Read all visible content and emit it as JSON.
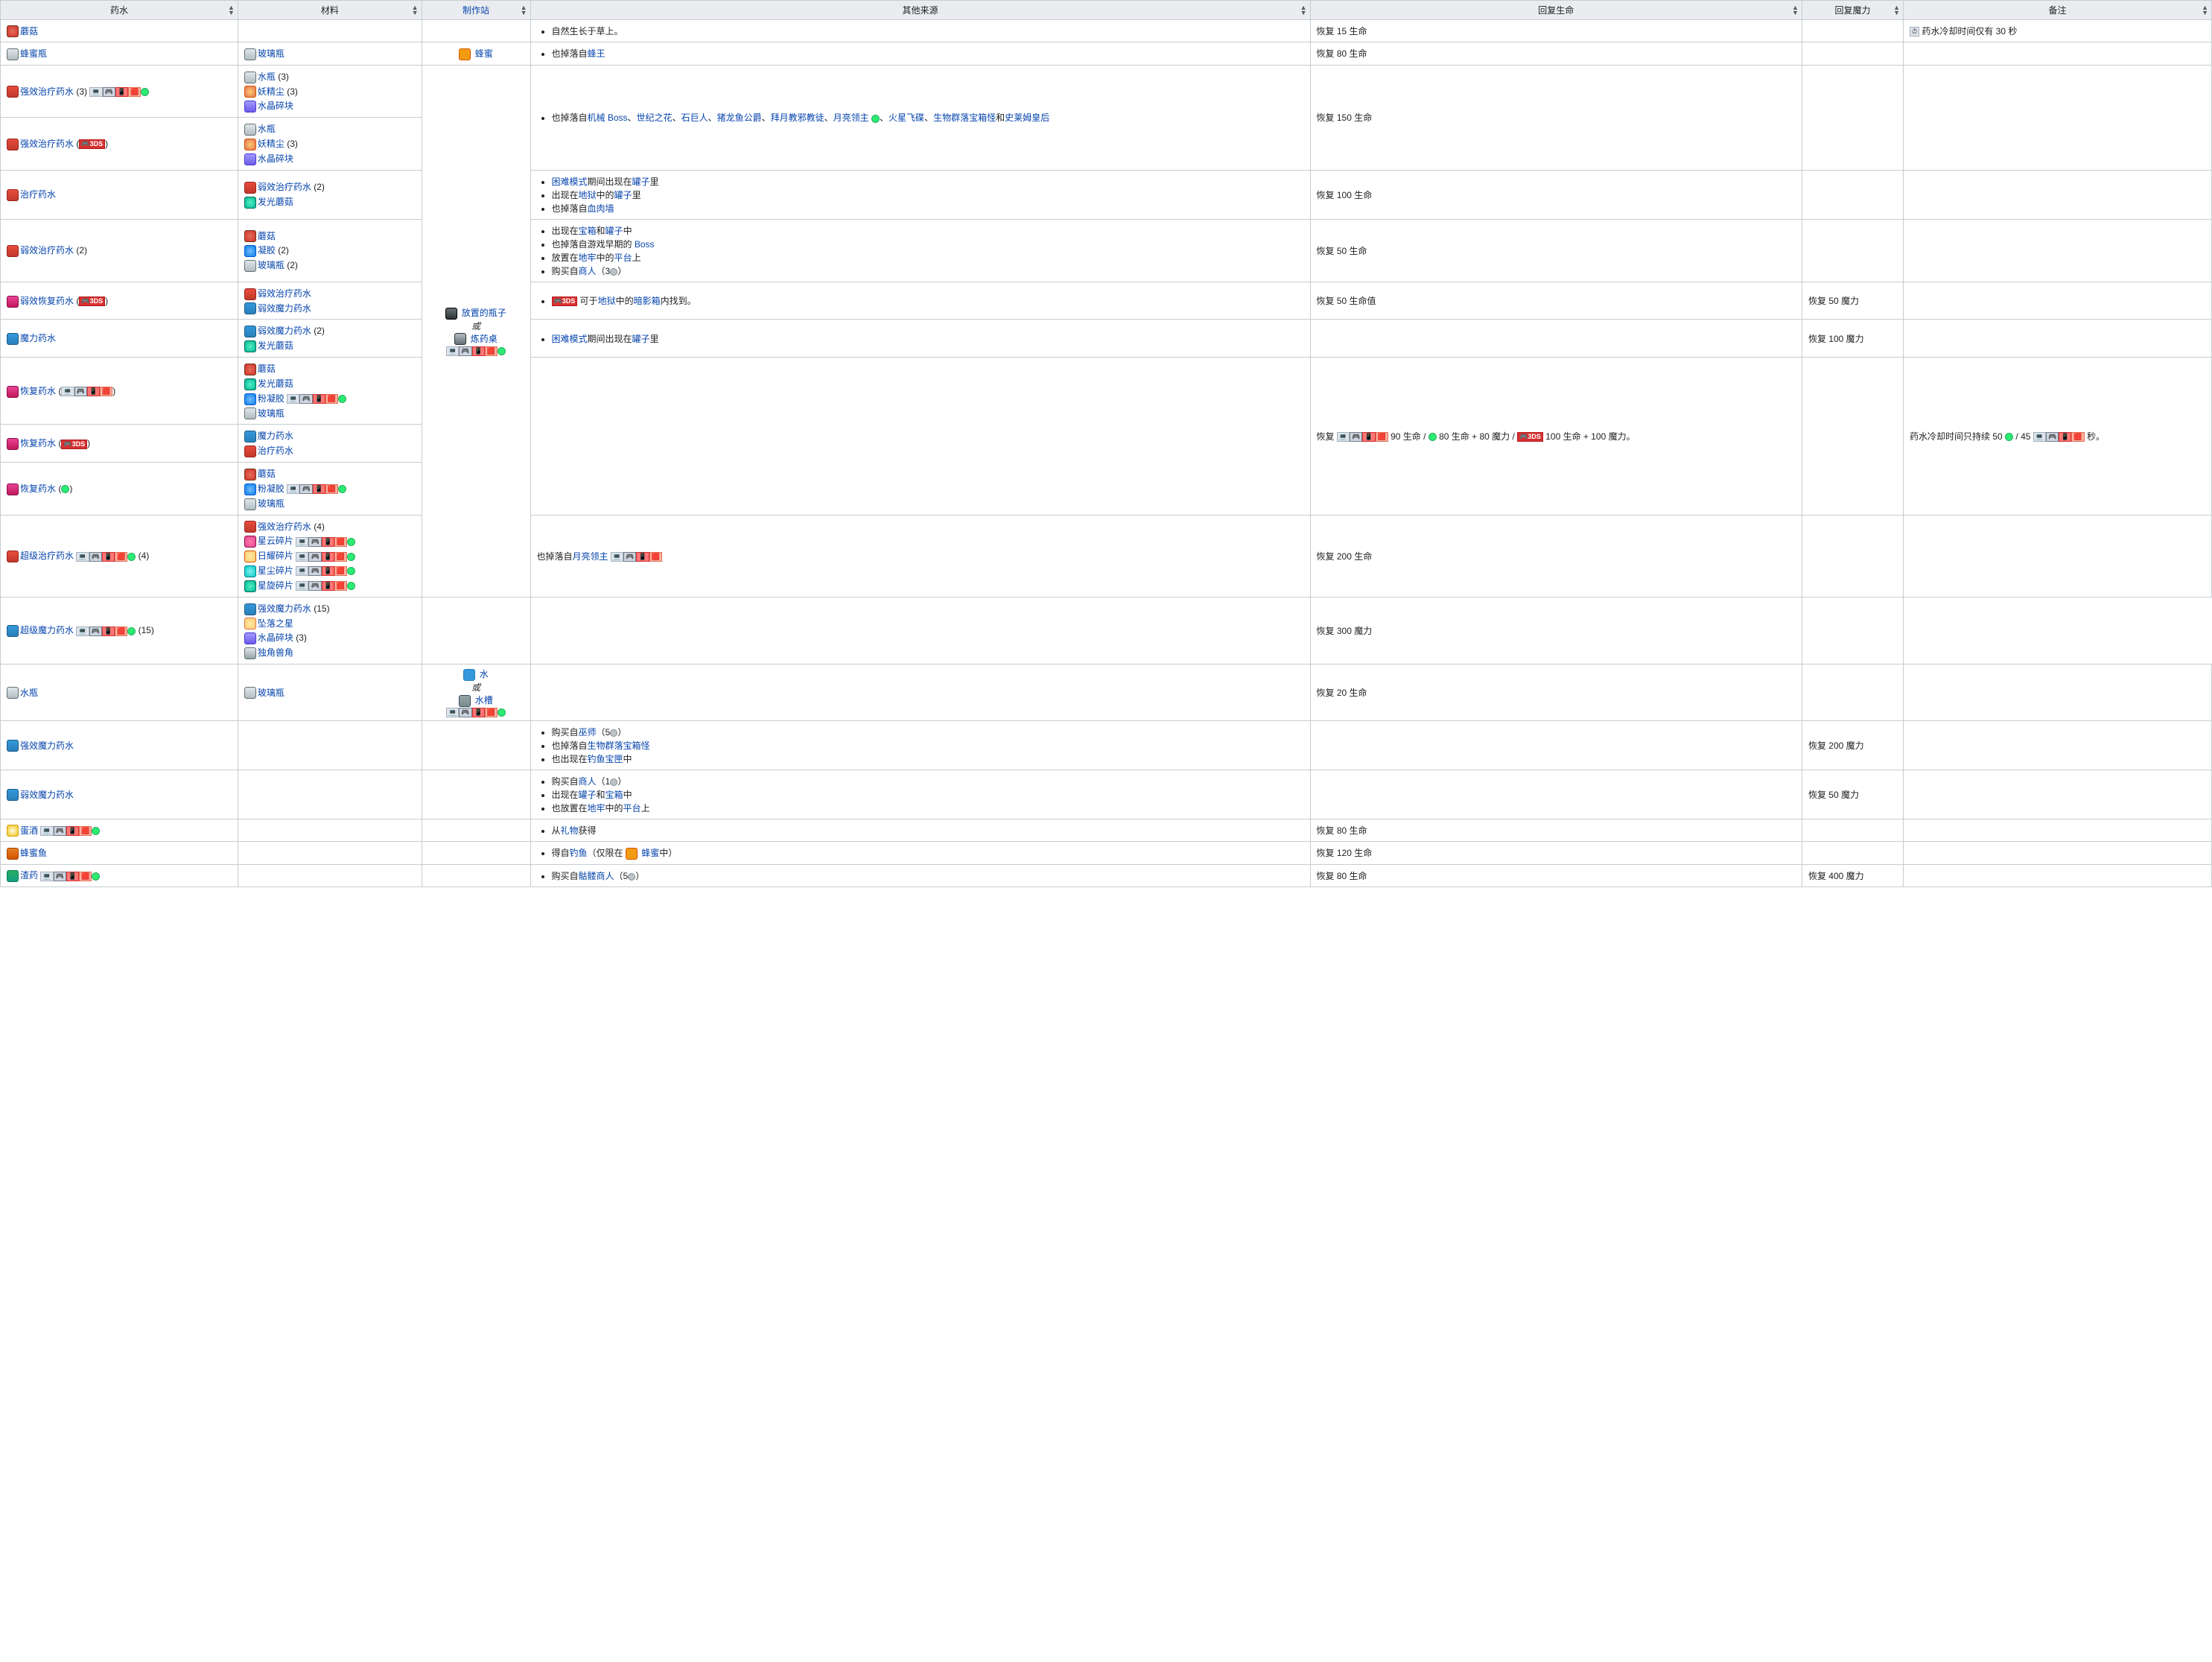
{
  "headers": {
    "potion": "药水",
    "materials": "材料",
    "craftStation": "制作站",
    "otherSources": "其他来源",
    "restoreLife": "回复生命",
    "restoreMana": "回复魔力",
    "notes": "备注"
  },
  "stations": {
    "honey": "蜂蜜",
    "placedBottle": "放置的瓶子",
    "or": "或",
    "alchemyTable": "炼药桌",
    "water": "水",
    "sink": "水槽"
  },
  "rows": [
    {
      "potion": {
        "icon": "icon-mushroom",
        "name": "蘑菇"
      },
      "materials": [],
      "sources": [
        {
          "type": "li",
          "parts": [
            {
              "t": "自然生长于草上。"
            }
          ]
        }
      ],
      "life": "恢复 15 生命",
      "mana": "",
      "notes": "药水冷却时间仅有 30 秒",
      "notesIcon": true,
      "stationGroup": null
    },
    {
      "potion": {
        "icon": "icon-bottle",
        "name": "蜂蜜瓶"
      },
      "materials": [
        {
          "icon": "icon-bottle",
          "name": "玻璃瓶"
        }
      ],
      "sources": [
        {
          "type": "li",
          "parts": [
            {
              "t": "也掉落自"
            },
            {
              "link": "蜂王"
            }
          ]
        }
      ],
      "life": "恢复 80 生命",
      "mana": "",
      "notes": "",
      "stationGroup": "honey"
    },
    {
      "potion": {
        "icon": "icon-potion-red",
        "name": "强效治疗药水",
        "suffix": " (3) ",
        "platforms": [
          "pc",
          "console",
          "mobile",
          "switch",
          "old"
        ]
      },
      "materials": [
        {
          "icon": "icon-bottle",
          "name": "水瓶",
          "qty": "(3)"
        },
        {
          "icon": "icon-dust",
          "name": "妖精尘",
          "qty": "(3)"
        },
        {
          "icon": "icon-crystal",
          "name": "水晶碎块"
        }
      ],
      "sourcesRowspan": 2,
      "sources": [
        {
          "type": "li",
          "parts": [
            {
              "t": "也掉落自"
            },
            {
              "link": "机械 Boss"
            },
            {
              "t": "、"
            },
            {
              "link": "世纪之花"
            },
            {
              "t": "、"
            },
            {
              "link": "石巨人"
            },
            {
              "t": "、"
            },
            {
              "link": "猪龙鱼公爵"
            },
            {
              "t": "、"
            },
            {
              "link": "拜月教邪教徒"
            },
            {
              "t": "、"
            },
            {
              "link": "月亮领主"
            },
            {
              "t": " "
            },
            {
              "platOld": true
            },
            {
              "t": "、"
            },
            {
              "link": "火星飞碟"
            },
            {
              "t": "、"
            },
            {
              "link": "生物群落宝箱怪"
            },
            {
              "t": "和"
            },
            {
              "link": "史莱姆皇后"
            }
          ]
        }
      ],
      "life": "恢复 150 生命",
      "lifeRowspan": 2,
      "mana": "",
      "manaRowspan": 2,
      "notes": "",
      "notesRowspan": 2,
      "stationGroup": "bottle-start",
      "stationRowspan": 10
    },
    {
      "potion": {
        "icon": "icon-potion-red",
        "name": "强效治疗药水",
        "suffix": " (",
        "platforms3ds": true,
        "suffix2": ")"
      },
      "materials": [
        {
          "icon": "icon-bottle",
          "name": "水瓶"
        },
        {
          "icon": "icon-dust",
          "name": "妖精尘",
          "qty": "(3)"
        },
        {
          "icon": "icon-crystal",
          "name": "水晶碎块"
        }
      ],
      "stationGroup": "bottle"
    },
    {
      "potion": {
        "icon": "icon-potion-red",
        "name": "治疗药水"
      },
      "materials": [
        {
          "icon": "icon-potion-red",
          "name": "弱效治疗药水",
          "qty": "(2)"
        },
        {
          "icon": "icon-glow-mushroom",
          "name": "发光蘑菇"
        }
      ],
      "sources": [
        {
          "type": "li",
          "parts": [
            {
              "link": "困难模式"
            },
            {
              "t": "期间出现在"
            },
            {
              "link": "罐子"
            },
            {
              "t": "里"
            }
          ]
        },
        {
          "type": "li",
          "parts": [
            {
              "t": "出现在"
            },
            {
              "link": "地狱"
            },
            {
              "t": "中的"
            },
            {
              "link": "罐子"
            },
            {
              "t": "里"
            }
          ]
        },
        {
          "type": "li",
          "parts": [
            {
              "t": "也掉落自"
            },
            {
              "link": "血肉墙"
            }
          ]
        }
      ],
      "life": "恢复 100 生命",
      "mana": "",
      "notes": "",
      "stationGroup": "bottle"
    },
    {
      "potion": {
        "icon": "icon-potion-red",
        "name": "弱效治疗药水",
        "suffix": " (2)"
      },
      "materials": [
        {
          "icon": "icon-mushroom",
          "name": "蘑菇"
        },
        {
          "icon": "icon-gel",
          "name": "凝胶",
          "qty": "(2)"
        },
        {
          "icon": "icon-bottle",
          "name": "玻璃瓶",
          "qty": "(2)"
        }
      ],
      "sources": [
        {
          "type": "li",
          "parts": [
            {
              "t": "出现在"
            },
            {
              "link": "宝箱"
            },
            {
              "t": "和"
            },
            {
              "link": "罐子"
            },
            {
              "t": "中"
            }
          ]
        },
        {
          "type": "li",
          "parts": [
            {
              "t": "也掉落自游戏早期的 "
            },
            {
              "link": "Boss"
            }
          ]
        },
        {
          "type": "li",
          "parts": [
            {
              "t": "放置在"
            },
            {
              "link": "地牢"
            },
            {
              "t": "中的"
            },
            {
              "link": "平台"
            },
            {
              "t": "上"
            }
          ]
        },
        {
          "type": "li",
          "parts": [
            {
              "t": "购买自"
            },
            {
              "link": "商人"
            },
            {
              "t": "（3"
            },
            {
              "coin": "silver"
            },
            {
              "t": "）"
            }
          ]
        }
      ],
      "life": "恢复 50 生命",
      "mana": "",
      "notes": "",
      "stationGroup": "bottle"
    },
    {
      "potion": {
        "icon": "icon-potion-pink",
        "name": "弱效恢复药水",
        "suffix": " (",
        "platforms3ds": true,
        "suffix2": ")"
      },
      "materials": [
        {
          "icon": "icon-potion-red",
          "name": "弱效治疗药水"
        },
        {
          "icon": "icon-potion-blue",
          "name": "弱效魔力药水"
        }
      ],
      "sources": [
        {
          "type": "li",
          "parts": [
            {
              "plat3ds": true
            },
            {
              "t": " 可于"
            },
            {
              "link": "地狱"
            },
            {
              "t": "中的"
            },
            {
              "link": "暗影箱"
            },
            {
              "t": "内找到。"
            }
          ]
        }
      ],
      "life": "恢复 50 生命值",
      "mana": "恢复 50 魔力",
      "notes": "",
      "stationGroup": "bottle"
    },
    {
      "potion": {
        "icon": "icon-potion-blue",
        "name": "魔力药水"
      },
      "materials": [
        {
          "icon": "icon-potion-blue",
          "name": "弱效魔力药水",
          "qty": "(2)"
        },
        {
          "icon": "icon-glow-mushroom",
          "name": "发光蘑菇"
        }
      ],
      "sources": [
        {
          "type": "li",
          "parts": [
            {
              "link": "困难模式"
            },
            {
              "t": "期间出现在"
            },
            {
              "link": "罐子"
            },
            {
              "t": "里"
            }
          ]
        }
      ],
      "life": "",
      "mana": "恢复 100 魔力",
      "notes": "",
      "stationGroup": "bottle"
    },
    {
      "potion": {
        "icon": "icon-potion-pink",
        "name": "恢复药水",
        "suffix": " (",
        "platforms": [
          "pc",
          "console",
          "mobile",
          "switch"
        ],
        "suffix2": ")"
      },
      "materials": [
        {
          "icon": "icon-mushroom",
          "name": "蘑菇"
        },
        {
          "icon": "icon-glow-mushroom",
          "name": "发光蘑菇"
        },
        {
          "icon": "icon-gel",
          "name": "粉凝胶",
          "platforms": [
            "pc",
            "console",
            "mobile",
            "switch",
            "old"
          ]
        },
        {
          "icon": "icon-bottle",
          "name": "玻璃瓶"
        }
      ],
      "sources": [],
      "sourcesRowspan": 3,
      "lifeRowspan": 3,
      "lifeComplex": true,
      "manaRowspan": 3,
      "mana": "",
      "notesRowspan": 3,
      "notesComplex": true,
      "stationGroup": "bottle"
    },
    {
      "potion": {
        "icon": "icon-potion-pink",
        "name": "恢复药水",
        "suffix": " (",
        "platforms3ds": true,
        "suffix2": ")"
      },
      "materials": [
        {
          "icon": "icon-potion-blue",
          "name": "魔力药水"
        },
        {
          "icon": "icon-potion-red",
          "name": "治疗药水"
        }
      ],
      "stationGroup": "bottle"
    },
    {
      "potion": {
        "icon": "icon-potion-pink",
        "name": "恢复药水",
        "suffix": " (",
        "platformsOld": true,
        "suffix2": ")"
      },
      "materials": [
        {
          "icon": "icon-mushroom",
          "name": "蘑菇"
        },
        {
          "icon": "icon-gel",
          "name": "粉凝胶",
          "platforms": [
            "pc",
            "console",
            "mobile",
            "switch",
            "old"
          ]
        },
        {
          "icon": "icon-bottle",
          "name": "玻璃瓶"
        }
      ],
      "stationGroup": "bottle"
    },
    {
      "potion": {
        "icon": "icon-potion-red",
        "name": "超级治疗药水",
        "suffix": " ",
        "platforms": [
          "pc",
          "console",
          "mobile",
          "switch",
          "old"
        ],
        "suffix2": " (4)"
      },
      "materials": [
        {
          "icon": "icon-potion-red",
          "name": "强效治疗药水",
          "qty": "(4)"
        },
        {
          "icon": "icon-frag-nebula",
          "name": "星云碎片",
          "platforms": [
            "pc",
            "console",
            "mobile",
            "switch",
            "old"
          ]
        },
        {
          "icon": "icon-frag-solar",
          "name": "日耀碎片",
          "platforms": [
            "pc",
            "console",
            "mobile",
            "switch",
            "old"
          ]
        },
        {
          "icon": "icon-frag-stardust",
          "name": "星尘碎片",
          "platforms": [
            "pc",
            "console",
            "mobile",
            "switch",
            "old"
          ]
        },
        {
          "icon": "icon-frag-vortex",
          "name": "星旋碎片",
          "platforms": [
            "pc",
            "console",
            "mobile",
            "switch",
            "old"
          ]
        }
      ],
      "sources": [
        {
          "type": "plain",
          "parts": [
            {
              "t": "也掉落自"
            },
            {
              "link": "月亮领主"
            },
            {
              "t": " "
            },
            {
              "platforms": [
                "pc",
                "console",
                "mobile",
                "switch"
              ]
            }
          ]
        }
      ],
      "life": "恢复 200 生命",
      "mana": "",
      "notes": "",
      "stationGroup": "bottle"
    },
    {
      "potion": {
        "icon": "icon-potion-blue",
        "name": "超级魔力药水",
        "suffix": " ",
        "platforms": [
          "pc",
          "console",
          "mobile",
          "switch",
          "old"
        ],
        "suffix2": " (15)"
      },
      "materials": [
        {
          "icon": "icon-potion-blue",
          "name": "强效魔力药水",
          "qty": "(15)"
        },
        {
          "icon": "icon-star",
          "name": "坠落之星"
        },
        {
          "icon": "icon-crystal",
          "name": "水晶碎块",
          "qty": "(3)"
        },
        {
          "icon": "icon-horn",
          "name": "独角兽角"
        }
      ],
      "sources": [],
      "life": "",
      "mana": "恢复 300 魔力",
      "notes": "",
      "stationGroup": "bottle"
    },
    {
      "potion": {
        "icon": "icon-bottle",
        "name": "水瓶"
      },
      "materials": [
        {
          "icon": "icon-bottle",
          "name": "玻璃瓶"
        }
      ],
      "sources": [],
      "life": "恢复 20 生命",
      "mana": "",
      "notes": "",
      "stationGroup": "water"
    },
    {
      "potion": {
        "icon": "icon-potion-blue",
        "name": "强效魔力药水"
      },
      "materials": [],
      "sources": [
        {
          "type": "li",
          "parts": [
            {
              "t": "购买自"
            },
            {
              "link": "巫师"
            },
            {
              "t": "（5"
            },
            {
              "coin": "silver"
            },
            {
              "t": "）"
            }
          ]
        },
        {
          "type": "li",
          "parts": [
            {
              "t": "也掉落自"
            },
            {
              "link": "生物群落宝箱怪"
            }
          ]
        },
        {
          "type": "li",
          "parts": [
            {
              "t": "也出现在"
            },
            {
              "link": "钓鱼宝匣"
            },
            {
              "t": "中"
            }
          ]
        }
      ],
      "life": "",
      "mana": "恢复 200 魔力",
      "notes": "",
      "stationGroup": null
    },
    {
      "potion": {
        "icon": "icon-potion-blue",
        "name": "弱效魔力药水"
      },
      "materials": [],
      "sources": [
        {
          "type": "li",
          "parts": [
            {
              "t": "购买自"
            },
            {
              "link": "商人"
            },
            {
              "t": "（1"
            },
            {
              "coin": "silver"
            },
            {
              "t": "）"
            }
          ]
        },
        {
          "type": "li",
          "parts": [
            {
              "t": "出现在"
            },
            {
              "link": "罐子"
            },
            {
              "t": "和"
            },
            {
              "link": "宝箱"
            },
            {
              "t": "中"
            }
          ]
        },
        {
          "type": "li",
          "parts": [
            {
              "t": "也放置在"
            },
            {
              "link": "地牢"
            },
            {
              "t": "中的"
            },
            {
              "link": "平台"
            },
            {
              "t": "上"
            }
          ]
        }
      ],
      "life": "",
      "mana": "恢复 50 魔力",
      "notes": "",
      "stationGroup": null
    },
    {
      "potion": {
        "icon": "icon-egg",
        "name": "蛋酒",
        "suffix": " ",
        "platforms": [
          "pc",
          "console",
          "mobile",
          "switch",
          "old"
        ]
      },
      "materials": [],
      "sources": [
        {
          "type": "li",
          "parts": [
            {
              "t": "从"
            },
            {
              "link": "礼物"
            },
            {
              "t": "获得"
            }
          ]
        }
      ],
      "life": "恢复 80 生命",
      "mana": "",
      "notes": "",
      "stationGroup": null
    },
    {
      "potion": {
        "icon": "icon-fish",
        "name": "蜂蜜鱼"
      },
      "materials": [],
      "sources": [
        {
          "type": "li",
          "parts": [
            {
              "t": "得自"
            },
            {
              "link": "钓鱼"
            },
            {
              "t": "（仅限在 "
            },
            {
              "honeyIcon": true
            },
            {
              "t": " "
            },
            {
              "link": "蜂蜜"
            },
            {
              "t": "中）"
            }
          ]
        }
      ],
      "life": "恢复 120 生命",
      "mana": "",
      "notes": "",
      "stationGroup": null
    },
    {
      "potion": {
        "icon": "icon-potion-green",
        "name": "渣药",
        "suffix": " ",
        "platforms": [
          "pc",
          "console",
          "mobile",
          "switch",
          "old"
        ]
      },
      "materials": [],
      "sources": [
        {
          "type": "li",
          "parts": [
            {
              "t": "购买自"
            },
            {
              "link": "骷髅商人"
            },
            {
              "t": "（5"
            },
            {
              "coin": "silver"
            },
            {
              "t": "）"
            }
          ]
        }
      ],
      "life": "恢复 80 生命",
      "mana": "恢复 400 魔力",
      "notes": "",
      "stationGroup": null
    }
  ],
  "complexLife": {
    "prefix": "恢复 ",
    "part1": " 90 生命 / ",
    "part2": " 80 生命 + 80 魔力 / ",
    "part3": " 100 生命 + 100 魔力。"
  },
  "complexNotes": {
    "prefix": "药水冷却时间只持续 50 ",
    "mid": " / 45 ",
    "suffix": " 秒。"
  },
  "platLabels": {
    "pc": "🖥",
    "console": "🎮",
    "mobile": "📱",
    "switch": "⬛",
    "3ds": "3DS"
  }
}
